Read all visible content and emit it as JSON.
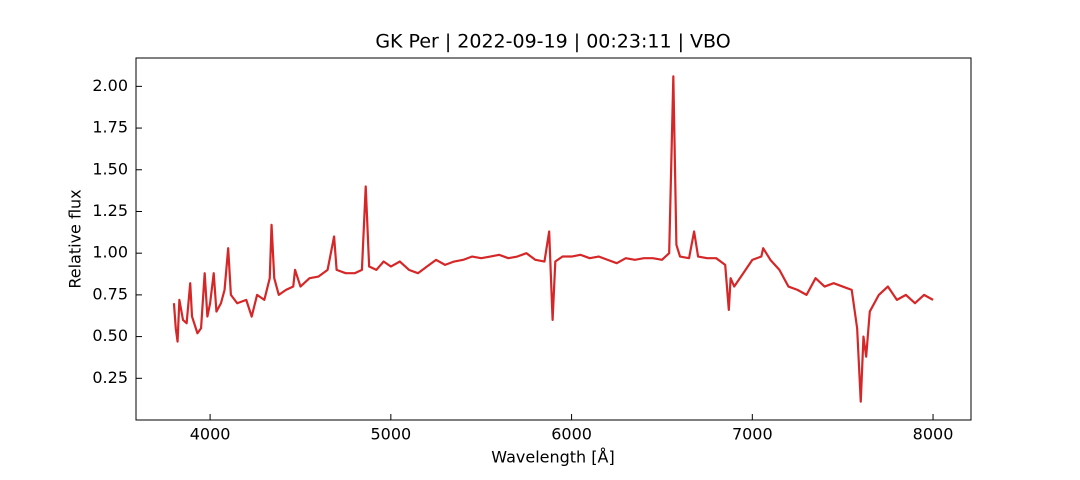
{
  "chart_data": {
    "type": "line",
    "title": "GK Per | 2022-09-19 | 00:23:11 | VBO",
    "x_label": "Wavelength [Å]",
    "y_label": "Relative flux",
    "xlim": [
      3590,
      8210
    ],
    "ylim": [
      0.0,
      2.17
    ],
    "xticks": [
      4000,
      5000,
      6000,
      7000,
      8000
    ],
    "yticks": [
      0.25,
      {
        "value": 0.5,
        "label": "0.50"
      },
      0.75,
      {
        "value": 1,
        "label": "1.00"
      },
      1.25,
      {
        "value": 1.5,
        "label": "1.50"
      },
      1.75,
      {
        "value": 2,
        "label": "2.00"
      }
    ],
    "series": [
      {
        "color": "#d62728",
        "x": [
          3800,
          3810,
          3820,
          3830,
          3850,
          3870,
          3890,
          3900,
          3930,
          3950,
          3970,
          3985,
          4000,
          4020,
          4035,
          4060,
          4080,
          4100,
          4115,
          4150,
          4200,
          4230,
          4260,
          4300,
          4330,
          4340,
          4355,
          4380,
          4420,
          4460,
          4470,
          4500,
          4550,
          4600,
          4650,
          4686,
          4700,
          4750,
          4800,
          4840,
          4861,
          4880,
          4920,
          4960,
          5000,
          5050,
          5100,
          5150,
          5200,
          5250,
          5300,
          5350,
          5400,
          5450,
          5500,
          5550,
          5600,
          5650,
          5700,
          5750,
          5800,
          5850,
          5876,
          5895,
          5910,
          5950,
          6000,
          6050,
          6100,
          6150,
          6200,
          6250,
          6300,
          6350,
          6400,
          6450,
          6500,
          6540,
          6563,
          6580,
          6600,
          6650,
          6678,
          6700,
          6750,
          6800,
          6850,
          6870,
          6880,
          6900,
          6950,
          7000,
          7050,
          7060,
          7100,
          7150,
          7200,
          7250,
          7300,
          7350,
          7400,
          7450,
          7500,
          7550,
          7580,
          7600,
          7615,
          7630,
          7650,
          7700,
          7750,
          7800,
          7850,
          7900,
          7950,
          8000
        ],
        "values": [
          0.7,
          0.55,
          0.47,
          0.72,
          0.6,
          0.58,
          0.82,
          0.62,
          0.52,
          0.55,
          0.88,
          0.62,
          0.7,
          0.88,
          0.65,
          0.7,
          0.78,
          1.03,
          0.75,
          0.7,
          0.72,
          0.62,
          0.75,
          0.72,
          0.85,
          1.17,
          0.85,
          0.75,
          0.78,
          0.8,
          0.9,
          0.8,
          0.85,
          0.86,
          0.9,
          1.1,
          0.9,
          0.88,
          0.88,
          0.9,
          1.4,
          0.92,
          0.9,
          0.95,
          0.92,
          0.95,
          0.9,
          0.88,
          0.92,
          0.96,
          0.93,
          0.95,
          0.96,
          0.98,
          0.97,
          0.98,
          0.99,
          0.97,
          0.98,
          1.0,
          0.96,
          0.95,
          1.13,
          0.6,
          0.95,
          0.98,
          0.98,
          0.99,
          0.97,
          0.98,
          0.96,
          0.94,
          0.97,
          0.96,
          0.97,
          0.97,
          0.96,
          1.0,
          2.06,
          1.05,
          0.98,
          0.97,
          1.13,
          0.98,
          0.97,
          0.97,
          0.93,
          0.66,
          0.85,
          0.8,
          0.88,
          0.96,
          0.98,
          1.03,
          0.96,
          0.9,
          0.8,
          0.78,
          0.75,
          0.85,
          0.8,
          0.82,
          0.8,
          0.78,
          0.55,
          0.11,
          0.5,
          0.38,
          0.65,
          0.75,
          0.8,
          0.72,
          0.75,
          0.7,
          0.75,
          0.72
        ]
      }
    ]
  }
}
